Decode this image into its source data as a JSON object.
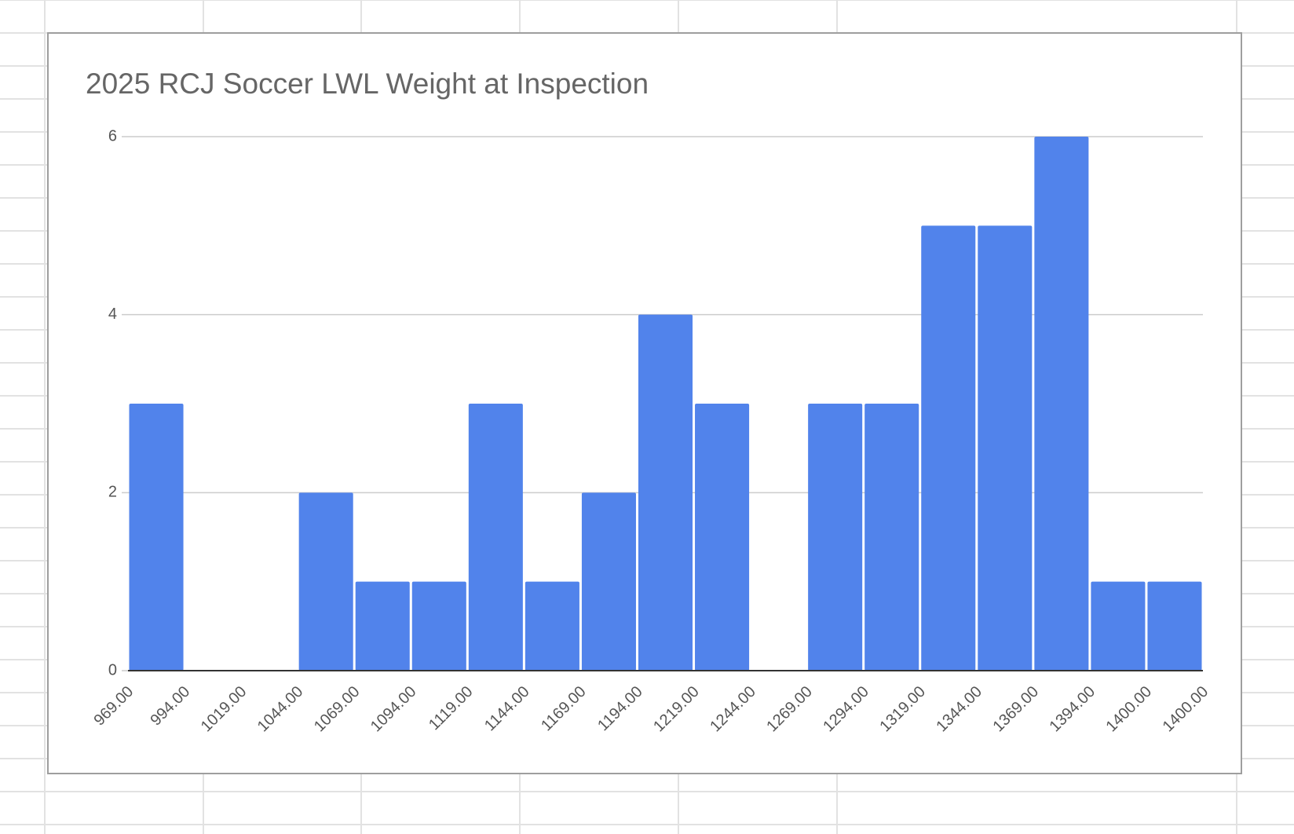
{
  "chart_data": {
    "type": "histogram",
    "title": "2025 RCJ Soccer LWL Weight at Inspection",
    "bins": [
      "969.00",
      "994.00",
      "1019.00",
      "1044.00",
      "1069.00",
      "1094.00",
      "1119.00",
      "1144.00",
      "1169.00",
      "1194.00",
      "1219.00",
      "1244.00",
      "1269.00",
      "1294.00",
      "1319.00",
      "1344.00",
      "1369.00",
      "1394.00",
      "1400.00",
      "1400.00"
    ],
    "values": [
      3,
      0,
      0,
      2,
      1,
      1,
      3,
      1,
      2,
      4,
      3,
      0,
      3,
      3,
      5,
      5,
      6,
      1,
      1
    ],
    "color": "#5183eb",
    "ylim": [
      0,
      6
    ],
    "yticks": [
      0,
      2,
      4,
      6
    ],
    "grid": true
  }
}
